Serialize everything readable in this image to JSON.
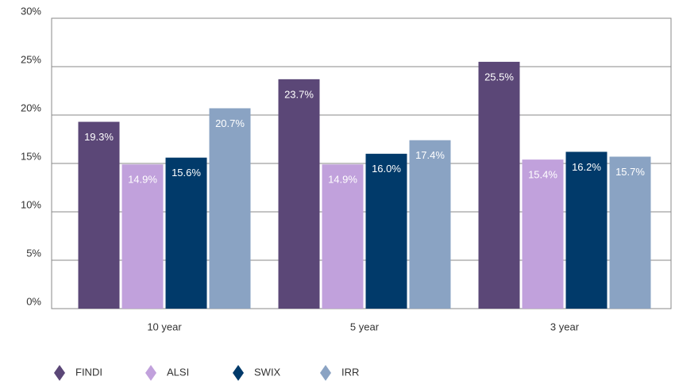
{
  "chart_data": {
    "type": "bar",
    "categories": [
      "10 year",
      "5 year",
      "3 year"
    ],
    "series": [
      {
        "name": "FINDI",
        "color": "#5b4777",
        "values": [
          19.3,
          23.7,
          25.5
        ],
        "value_labels": [
          "19.3%",
          "23.7%",
          "25.5%"
        ]
      },
      {
        "name": "ALSI",
        "color": "#c1a1dc",
        "values": [
          14.9,
          14.9,
          15.4
        ],
        "value_labels": [
          "14.9%",
          "14.9%",
          "15.4%"
        ]
      },
      {
        "name": "SWIX",
        "color": "#013a6a",
        "values": [
          15.6,
          16.0,
          16.2
        ],
        "value_labels": [
          "15.6%",
          "16.0%",
          "16.2%"
        ]
      },
      {
        "name": "IRR",
        "color": "#8aa3c3",
        "values": [
          20.7,
          17.4,
          15.7
        ],
        "value_labels": [
          "20.7%",
          "17.4%",
          "15.7%"
        ]
      }
    ],
    "ylim": [
      0,
      30
    ],
    "yticks": [
      {
        "value": 0,
        "label": "0%"
      },
      {
        "value": 5,
        "label": "5%"
      },
      {
        "value": 10,
        "label": "10%"
      },
      {
        "value": 15,
        "label": "15%"
      },
      {
        "value": 20,
        "label": "20%"
      },
      {
        "value": 25,
        "label": "25%"
      },
      {
        "value": 30,
        "label": "30%"
      }
    ],
    "grid": true,
    "legend": "bottom"
  }
}
